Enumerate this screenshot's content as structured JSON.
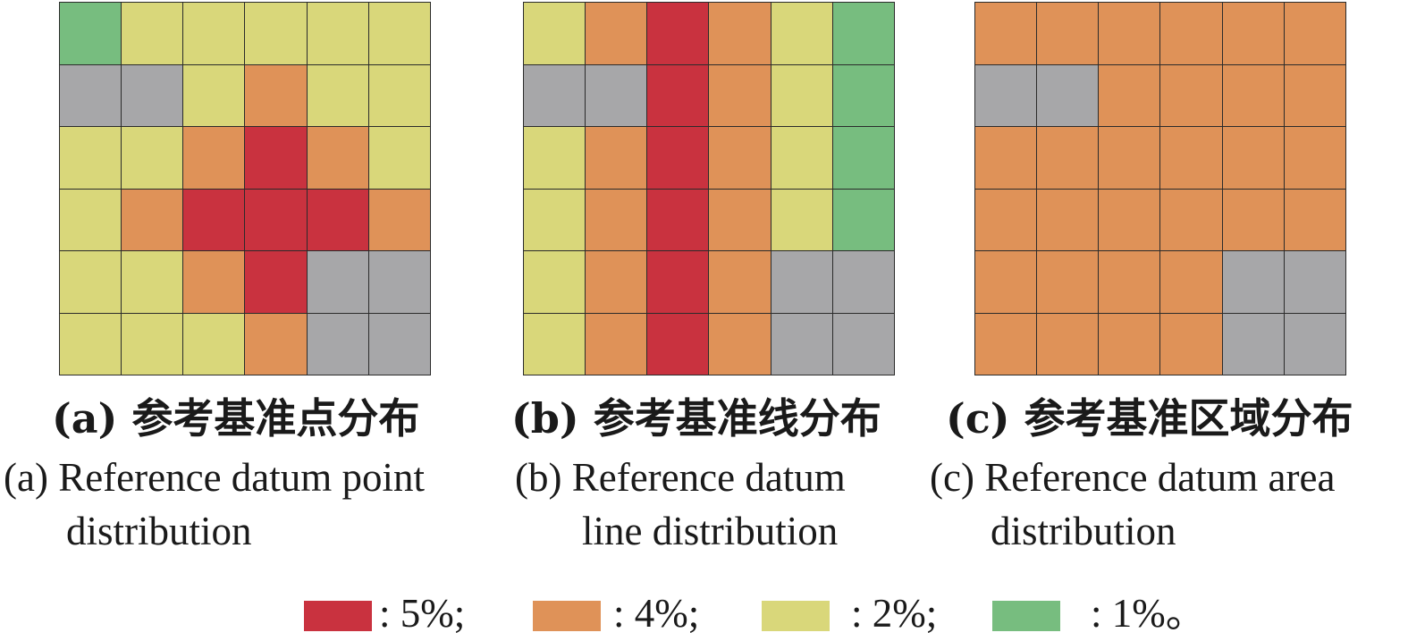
{
  "colors": {
    "R": "#c9323f",
    "O": "#df9258",
    "Y": "#d9d77a",
    "G": "#77bd7f",
    "X": "#a7a7a9"
  },
  "panels": [
    {
      "label_zh": "(a) 参考基准点分布",
      "label_en_1": "(a) Reference datum point",
      "label_en_2": "distribution",
      "grid": [
        [
          "G",
          "Y",
          "Y",
          "Y",
          "Y",
          "Y"
        ],
        [
          "X",
          "X",
          "Y",
          "O",
          "Y",
          "Y"
        ],
        [
          "Y",
          "Y",
          "O",
          "R",
          "O",
          "Y"
        ],
        [
          "Y",
          "O",
          "R",
          "R",
          "R",
          "O"
        ],
        [
          "Y",
          "Y",
          "O",
          "R",
          "X",
          "X"
        ],
        [
          "Y",
          "Y",
          "Y",
          "O",
          "X",
          "X"
        ]
      ]
    },
    {
      "label_zh": "(b) 参考基准线分布",
      "label_en_1": "(b) Reference datum",
      "label_en_2": "line distribution",
      "grid": [
        [
          "Y",
          "O",
          "R",
          "O",
          "Y",
          "G"
        ],
        [
          "X",
          "X",
          "R",
          "O",
          "Y",
          "G"
        ],
        [
          "Y",
          "O",
          "R",
          "O",
          "Y",
          "G"
        ],
        [
          "Y",
          "O",
          "R",
          "O",
          "Y",
          "G"
        ],
        [
          "Y",
          "O",
          "R",
          "O",
          "X",
          "X"
        ],
        [
          "Y",
          "O",
          "R",
          "O",
          "X",
          "X"
        ]
      ]
    },
    {
      "label_zh": "(c) 参考基准区域分布",
      "label_en_1": "(c) Reference datum area",
      "label_en_2": "distribution",
      "grid": [
        [
          "O",
          "O",
          "O",
          "O",
          "O",
          "O"
        ],
        [
          "X",
          "X",
          "O",
          "O",
          "O",
          "O"
        ],
        [
          "O",
          "O",
          "O",
          "O",
          "O",
          "O"
        ],
        [
          "O",
          "O",
          "O",
          "O",
          "O",
          "O"
        ],
        [
          "O",
          "O",
          "O",
          "O",
          "X",
          "X"
        ],
        [
          "O",
          "O",
          "O",
          "O",
          "X",
          "X"
        ]
      ]
    }
  ],
  "legend": [
    {
      "key": "R",
      "label": ": 5%;"
    },
    {
      "key": "O",
      "label": ": 4%;"
    },
    {
      "key": "Y",
      "label": ": 2%;"
    },
    {
      "key": "G",
      "label": ": 1%。"
    }
  ]
}
